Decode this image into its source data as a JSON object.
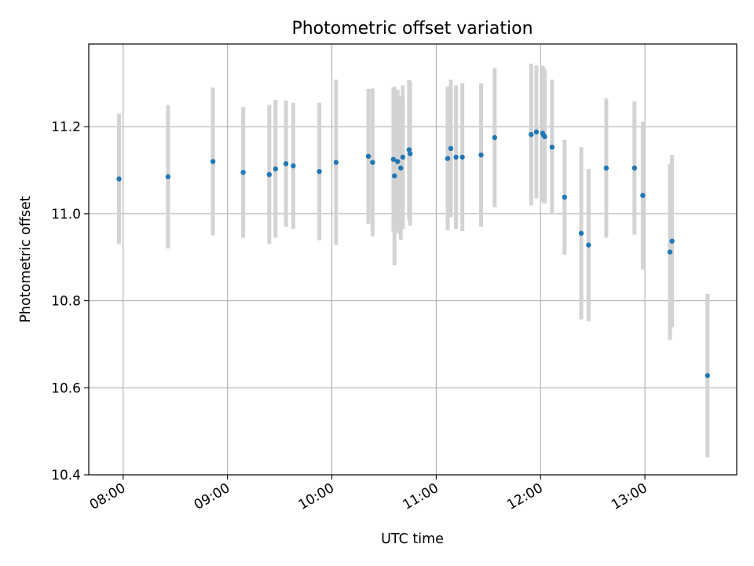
{
  "chart_data": {
    "type": "scatter",
    "title": "Photometric offset variation",
    "xlabel": "UTC time",
    "ylabel": "Photometric offset",
    "x_unit": "hours UTC",
    "xlim": [
      7.67,
      13.88
    ],
    "ylim": [
      10.4,
      11.39
    ],
    "grid": true,
    "legend": "none",
    "x_ticks": [
      {
        "value": 8,
        "label": "08:00"
      },
      {
        "value": 9,
        "label": "09:00"
      },
      {
        "value": 10,
        "label": "10:00"
      },
      {
        "value": 11,
        "label": "11:00"
      },
      {
        "value": 12,
        "label": "12:00"
      },
      {
        "value": 13,
        "label": "13:00"
      }
    ],
    "y_ticks": [
      {
        "value": 10.4,
        "label": "10.4"
      },
      {
        "value": 10.6,
        "label": "10.6"
      },
      {
        "value": 10.8,
        "label": "10.8"
      },
      {
        "value": 11.0,
        "label": "11.0"
      },
      {
        "value": 11.2,
        "label": "11.2"
      }
    ],
    "marker_color": "#1f77b4",
    "errorbar_color": "#d3d3d3",
    "series": [
      {
        "name": "offset",
        "points": [
          {
            "x": 7.96,
            "y": 11.08,
            "yerr": 0.15
          },
          {
            "x": 8.43,
            "y": 11.085,
            "yerr": 0.165
          },
          {
            "x": 8.86,
            "y": 11.12,
            "yerr": 0.17
          },
          {
            "x": 9.15,
            "y": 11.095,
            "yerr": 0.15
          },
          {
            "x": 9.4,
            "y": 11.09,
            "yerr": 0.16
          },
          {
            "x": 9.46,
            "y": 11.103,
            "yerr": 0.158
          },
          {
            "x": 9.56,
            "y": 11.115,
            "yerr": 0.145
          },
          {
            "x": 9.63,
            "y": 11.11,
            "yerr": 0.145
          },
          {
            "x": 9.88,
            "y": 11.097,
            "yerr": 0.158
          },
          {
            "x": 10.04,
            "y": 11.118,
            "yerr": 0.19
          },
          {
            "x": 10.35,
            "y": 11.132,
            "yerr": 0.155
          },
          {
            "x": 10.39,
            "y": 11.118,
            "yerr": 0.17
          },
          {
            "x": 10.59,
            "y": 11.125,
            "yerr": 0.165
          },
          {
            "x": 10.6,
            "y": 11.087,
            "yerr": 0.205
          },
          {
            "x": 10.63,
            "y": 11.12,
            "yerr": 0.165
          },
          {
            "x": 10.66,
            "y": 11.105,
            "yerr": 0.165
          },
          {
            "x": 10.68,
            "y": 11.13,
            "yerr": 0.165
          },
          {
            "x": 10.74,
            "y": 11.147,
            "yerr": 0.16
          },
          {
            "x": 10.75,
            "y": 11.138,
            "yerr": 0.165
          },
          {
            "x": 11.11,
            "y": 11.127,
            "yerr": 0.165
          },
          {
            "x": 11.14,
            "y": 11.15,
            "yerr": 0.158
          },
          {
            "x": 11.19,
            "y": 11.13,
            "yerr": 0.165
          },
          {
            "x": 11.25,
            "y": 11.13,
            "yerr": 0.17
          },
          {
            "x": 11.43,
            "y": 11.135,
            "yerr": 0.165
          },
          {
            "x": 11.56,
            "y": 11.175,
            "yerr": 0.16
          },
          {
            "x": 11.91,
            "y": 11.182,
            "yerr": 0.163
          },
          {
            "x": 11.96,
            "y": 11.188,
            "yerr": 0.153
          },
          {
            "x": 12.02,
            "y": 11.185,
            "yerr": 0.155
          },
          {
            "x": 12.03,
            "y": 11.18,
            "yerr": 0.155
          },
          {
            "x": 12.04,
            "y": 11.177,
            "yerr": 0.153
          },
          {
            "x": 12.11,
            "y": 11.153,
            "yerr": 0.155
          },
          {
            "x": 12.23,
            "y": 11.038,
            "yerr": 0.132
          },
          {
            "x": 12.39,
            "y": 10.955,
            "yerr": 0.198
          },
          {
            "x": 12.46,
            "y": 10.928,
            "yerr": 0.175
          },
          {
            "x": 12.63,
            "y": 11.105,
            "yerr": 0.16
          },
          {
            "x": 12.9,
            "y": 11.105,
            "yerr": 0.153
          },
          {
            "x": 12.98,
            "y": 11.042,
            "yerr": 0.17
          },
          {
            "x": 13.24,
            "y": 10.912,
            "yerr": 0.202
          },
          {
            "x": 13.26,
            "y": 10.937,
            "yerr": 0.198
          },
          {
            "x": 13.6,
            "y": 10.628,
            "yerr": 0.188
          }
        ]
      }
    ]
  }
}
